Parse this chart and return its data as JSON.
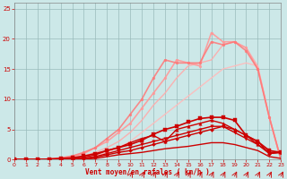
{
  "xlabel": "Vent moyen/en rafales ( km/h )",
  "background_color": "#cce8e8",
  "grid_color": "#99bbbb",
  "text_color": "#cc0000",
  "xlim": [
    0,
    23
  ],
  "ylim": [
    0,
    26
  ],
  "x_ticks": [
    0,
    1,
    2,
    3,
    4,
    5,
    6,
    7,
    8,
    9,
    10,
    11,
    12,
    13,
    14,
    15,
    16,
    17,
    18,
    19,
    20,
    21,
    22,
    23
  ],
  "y_ticks": [
    0,
    5,
    10,
    15,
    20,
    25
  ],
  "lines": [
    {
      "x": [
        0,
        1,
        2,
        3,
        4,
        5,
        6,
        7,
        8,
        9,
        10,
        11,
        12,
        13,
        14,
        15,
        16,
        17,
        18,
        19,
        20,
        21,
        22,
        23
      ],
      "y": [
        0,
        0,
        0,
        0,
        0,
        0,
        0.1,
        0.2,
        0.5,
        0.8,
        1.0,
        1.2,
        1.5,
        1.8,
        2.0,
        2.2,
        2.5,
        2.8,
        2.8,
        2.5,
        2.0,
        1.5,
        0.5,
        0.2
      ],
      "color": "#cc0000",
      "lw": 1.0,
      "marker": null,
      "ms": 0,
      "alpha": 1.0,
      "zorder": 3
    },
    {
      "x": [
        0,
        1,
        2,
        3,
        4,
        5,
        6,
        7,
        8,
        9,
        10,
        11,
        12,
        13,
        14,
        15,
        16,
        17,
        18,
        19,
        20,
        21,
        22,
        23
      ],
      "y": [
        0,
        0,
        0,
        0,
        0,
        0,
        0.2,
        0.4,
        0.8,
        1.2,
        1.5,
        2.0,
        2.5,
        3.0,
        3.5,
        4.0,
        4.5,
        5.0,
        5.5,
        5.0,
        4.0,
        3.0,
        1.0,
        1.2
      ],
      "color": "#cc0000",
      "lw": 1.0,
      "marker": "D",
      "ms": 2.0,
      "alpha": 1.0,
      "zorder": 3
    },
    {
      "x": [
        0,
        1,
        2,
        3,
        4,
        5,
        6,
        7,
        8,
        9,
        10,
        11,
        12,
        13,
        14,
        15,
        16,
        17,
        18,
        19,
        20,
        21,
        22,
        23
      ],
      "y": [
        0,
        0,
        0,
        0,
        0,
        0.1,
        0.2,
        0.5,
        1.0,
        1.5,
        2.0,
        2.5,
        3.0,
        3.5,
        4.0,
        4.5,
        5.0,
        5.5,
        5.5,
        4.5,
        3.5,
        2.5,
        1.0,
        1.2
      ],
      "color": "#cc0000",
      "lw": 1.0,
      "marker": "v",
      "ms": 2.5,
      "alpha": 1.0,
      "zorder": 3
    },
    {
      "x": [
        0,
        1,
        2,
        3,
        4,
        5,
        6,
        7,
        8,
        9,
        10,
        11,
        12,
        13,
        14,
        15,
        16,
        17,
        18,
        19,
        20,
        21,
        22,
        23
      ],
      "y": [
        0,
        0,
        0,
        0,
        0.1,
        0.2,
        0.4,
        0.8,
        1.5,
        2.0,
        2.8,
        3.5,
        4.0,
        3.0,
        5.0,
        5.5,
        6.0,
        6.5,
        6.0,
        5.0,
        4.0,
        2.5,
        1.2,
        1.2
      ],
      "color": "#cc0000",
      "lw": 1.0,
      "marker": "^",
      "ms": 2.5,
      "alpha": 1.0,
      "zorder": 3
    },
    {
      "x": [
        0,
        1,
        2,
        3,
        4,
        5,
        6,
        7,
        8,
        9,
        10,
        11,
        12,
        13,
        14,
        15,
        16,
        17,
        18,
        19,
        20,
        21,
        22,
        23
      ],
      "y": [
        0,
        0,
        0,
        0.1,
        0.2,
        0.3,
        0.6,
        1.0,
        1.5,
        2.0,
        2.5,
        3.2,
        4.2,
        5.0,
        5.5,
        6.2,
        6.8,
        7.0,
        7.0,
        6.5,
        4.0,
        3.0,
        1.5,
        1.2
      ],
      "color": "#cc0000",
      "lw": 1.2,
      "marker": "s",
      "ms": 2.5,
      "alpha": 1.0,
      "zorder": 3
    },
    {
      "x": [
        0,
        1,
        2,
        3,
        4,
        5,
        6,
        7,
        8,
        9,
        10,
        11,
        12,
        13,
        14,
        15,
        16,
        17,
        18,
        19,
        20,
        21,
        22,
        23
      ],
      "y": [
        0,
        0,
        0,
        0,
        0,
        0.1,
        0.3,
        0.7,
        1.2,
        2.0,
        3.0,
        4.5,
        6.0,
        7.5,
        9.0,
        10.5,
        12.0,
        13.5,
        15.0,
        15.5,
        16.0,
        15.5,
        7.0,
        0
      ],
      "color": "#ffbbbb",
      "lw": 1.0,
      "marker": null,
      "ms": 0,
      "alpha": 0.9,
      "zorder": 2
    },
    {
      "x": [
        0,
        1,
        2,
        3,
        4,
        5,
        6,
        7,
        8,
        9,
        10,
        11,
        12,
        13,
        14,
        15,
        16,
        17,
        18,
        19,
        20,
        21,
        22,
        23
      ],
      "y": [
        0,
        0,
        0,
        0,
        0.1,
        0.3,
        0.6,
        1.2,
        2.0,
        3.0,
        4.5,
        6.5,
        9.0,
        11.0,
        13.5,
        15.5,
        16.0,
        16.5,
        19.0,
        19.5,
        18.5,
        15.5,
        7.0,
        0
      ],
      "color": "#ffaaaa",
      "lw": 1.0,
      "marker": null,
      "ms": 0,
      "alpha": 0.9,
      "zorder": 2
    },
    {
      "x": [
        0,
        1,
        2,
        3,
        4,
        5,
        6,
        7,
        8,
        9,
        10,
        11,
        12,
        13,
        14,
        15,
        16,
        17,
        18,
        19,
        20,
        21,
        22,
        23
      ],
      "y": [
        0,
        0,
        0,
        0.1,
        0.2,
        0.5,
        1.0,
        2.0,
        3.0,
        4.5,
        6.0,
        8.5,
        11.0,
        13.5,
        16.5,
        16.0,
        15.5,
        21.0,
        19.5,
        19.5,
        18.5,
        15.0,
        7.0,
        0
      ],
      "color": "#ff9999",
      "lw": 1.2,
      "marker": "o",
      "ms": 2.0,
      "alpha": 0.9,
      "zorder": 2
    },
    {
      "x": [
        0,
        1,
        2,
        3,
        4,
        5,
        6,
        7,
        8,
        9,
        10,
        11,
        12,
        13,
        14,
        15,
        16,
        17,
        18,
        19,
        20,
        21,
        22,
        23
      ],
      "y": [
        0,
        0,
        0,
        0.1,
        0.3,
        0.6,
        1.2,
        2.0,
        3.5,
        5.0,
        7.5,
        10.0,
        13.5,
        16.5,
        16.0,
        16.0,
        16.0,
        19.5,
        19.0,
        19.5,
        18.0,
        15.0,
        7.0,
        0
      ],
      "color": "#ff7777",
      "lw": 1.2,
      "marker": "o",
      "ms": 2.0,
      "alpha": 0.85,
      "zorder": 2
    }
  ],
  "arrows_x": [
    10,
    11,
    12,
    13,
    14,
    15,
    16,
    17,
    18,
    19,
    20,
    21,
    22,
    23
  ],
  "arrow_color": "#cc0000"
}
